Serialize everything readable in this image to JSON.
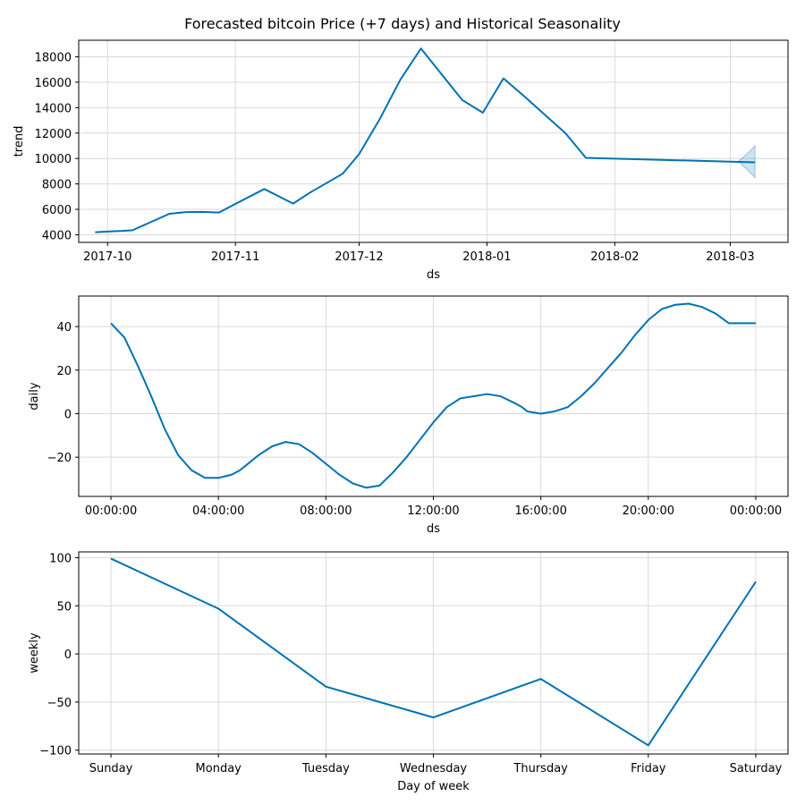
{
  "title": "Forecasted bitcoin Price (+7 days) and Historical Seasonality",
  "colors": {
    "line": "#0072B2",
    "band": "#0072B2",
    "grid": "#d9d9d9",
    "axis": "#000000"
  },
  "chart_data": [
    {
      "type": "line",
      "ylabel": "trend",
      "xlabel": "ds",
      "grid": true,
      "x_tick_labels": [
        "2017-10",
        "2017-11",
        "2017-12",
        "2018-01",
        "2018-02",
        "2018-03"
      ],
      "y_tick_labels": [
        "4000",
        "6000",
        "8000",
        "10000",
        "12000",
        "14000",
        "16000",
        "18000"
      ],
      "x_ticks": [
        "2017-10-01",
        "2017-11-01",
        "2017-12-01",
        "2018-01-01",
        "2018-02-01",
        "2018-03-01"
      ],
      "y_ticks": [
        4000,
        6000,
        8000,
        10000,
        12000,
        14000,
        16000,
        18000
      ],
      "xlim": [
        "2017-09-24",
        "2018-03-15"
      ],
      "ylim": [
        3400,
        19300
      ],
      "series": [
        {
          "x": [
            "2017-09-28",
            "2017-10-07",
            "2017-10-16",
            "2017-10-20",
            "2017-10-24",
            "2017-10-28",
            "2017-11-08",
            "2017-11-15",
            "2017-11-19",
            "2017-11-27",
            "2017-12-01",
            "2017-12-06",
            "2017-12-11",
            "2017-12-16",
            "2017-12-26",
            "2017-12-31",
            "2018-01-05",
            "2018-01-10",
            "2018-01-20",
            "2018-01-25",
            "2018-03-07"
          ],
          "y": [
            4200,
            4350,
            5650,
            5780,
            5800,
            5750,
            7600,
            6450,
            7300,
            8800,
            10350,
            13100,
            16200,
            18650,
            14600,
            13600,
            16300,
            14900,
            12000,
            10050,
            9700
          ]
        }
      ],
      "uncertainty": {
        "x": [
          "2018-03-03",
          "2018-03-05",
          "2018-03-07"
        ],
        "upper": [
          9800,
          10350,
          11000
        ],
        "lower": [
          9750,
          9150,
          8500
        ]
      }
    },
    {
      "type": "line",
      "ylabel": "daily",
      "xlabel": "ds",
      "grid": true,
      "x_tick_labels": [
        "00:00:00",
        "04:00:00",
        "08:00:00",
        "12:00:00",
        "16:00:00",
        "20:00:00",
        "00:00:00"
      ],
      "y_tick_labels": [
        "−20",
        "0",
        "20",
        "40"
      ],
      "x_ticks": [
        0,
        4,
        8,
        12,
        16,
        20,
        24
      ],
      "y_ticks": [
        -20,
        0,
        20,
        40
      ],
      "xlim": [
        -1.2,
        25.2
      ],
      "ylim": [
        -38,
        54
      ],
      "series": [
        {
          "x": [
            0,
            0.5,
            1,
            1.5,
            2,
            2.5,
            3,
            3.5,
            4,
            4.5,
            4.8,
            5,
            5.5,
            6,
            6.5,
            7,
            7.5,
            8,
            8.5,
            9,
            9.5,
            10,
            10.5,
            11,
            11.5,
            12,
            12.5,
            13,
            13.5,
            14,
            14.5,
            15,
            15.3,
            15.5,
            16,
            16.5,
            17,
            17.5,
            18,
            18.5,
            19,
            19.5,
            20,
            20.5,
            21,
            21.5,
            22,
            22.5,
            23,
            23.5,
            24
          ],
          "y": [
            41.5,
            35,
            22,
            8,
            -7,
            -19,
            -26,
            -29.5,
            -29.5,
            -28,
            -26,
            -24,
            -19,
            -15,
            -13,
            -14,
            -18,
            -23,
            -28,
            -32,
            -34,
            -33,
            -27,
            -20,
            -12,
            -4,
            3,
            7,
            8,
            9,
            8,
            5,
            3,
            1,
            0,
            1,
            3,
            8,
            14,
            21,
            28,
            36,
            43,
            48,
            50,
            50.5,
            49,
            46,
            41.5,
            41.5,
            41.5
          ]
        }
      ]
    },
    {
      "type": "line",
      "ylabel": "weekly",
      "xlabel": "Day of week",
      "grid": true,
      "categories": [
        "Sunday",
        "Monday",
        "Tuesday",
        "Wednesday",
        "Thursday",
        "Friday",
        "Saturday"
      ],
      "y_tick_labels": [
        "−100",
        "−50",
        "0",
        "50",
        "100"
      ],
      "y_ticks": [
        -100,
        -50,
        0,
        50,
        100
      ],
      "ylim": [
        -104,
        106
      ],
      "series": [
        {
          "values": [
            99,
            47,
            -34,
            -66,
            -26,
            -95,
            75
          ]
        }
      ]
    }
  ]
}
